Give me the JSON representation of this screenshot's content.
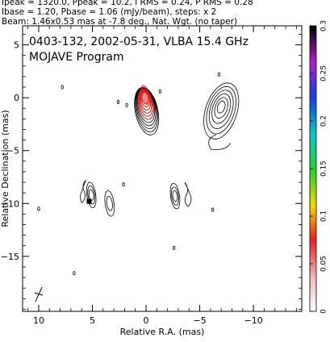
{
  "header": {
    "line1": "Ipeak = 1320.0, Ppeak = 10.2, I RMS = 0.24, P RMS = 0.28",
    "line2": "Ibase = 1.20, Pbase = 1.06 (mJy/beam), steps: x 2",
    "line3": "Beam: 1.46x0.53 mas at -7.8 deg., Nat. Wgt. (no taper)"
  },
  "chart_data": {
    "type": "contour",
    "title": "0403-132, 2002-05-31, VLBA 15.4 GHz",
    "subtitle": "MOJAVE Program",
    "xlabel": "Relative R.A. (mas)",
    "ylabel": "Relative Declination (mas)",
    "xlim": [
      11.5,
      -14.5
    ],
    "ylim": [
      -20.2,
      6.8
    ],
    "xticks": [
      10,
      5,
      0,
      -5,
      -10
    ],
    "yticks": [
      5,
      0,
      -5,
      -10,
      -15
    ],
    "colorbar": {
      "label_min": 0,
      "label_max": 0.3,
      "ticks": [
        0,
        0.05,
        0.1,
        0.15,
        0.2,
        0.25,
        0.3
      ],
      "tick_labels": [
        "0",
        "0.05",
        "0.1",
        "0.15",
        "0.2",
        "0.25",
        "0.3"
      ]
    },
    "core": {
      "ra": 0.1,
      "dec": 0.1,
      "levels": 11
    },
    "components": [
      {
        "ra": -7.0,
        "dec": -0.8,
        "levels": 6
      },
      {
        "ra": 5.1,
        "dec": -9.2,
        "levels": 3
      },
      {
        "ra": -2.7,
        "dec": -9.3,
        "levels": 3
      },
      {
        "ra": 3.4,
        "dec": -10.0,
        "levels": 2
      }
    ],
    "beam": {
      "major": 1.46,
      "minor": 0.53,
      "pa": -7.8,
      "ra": 10.0,
      "dec": -18.6
    }
  }
}
